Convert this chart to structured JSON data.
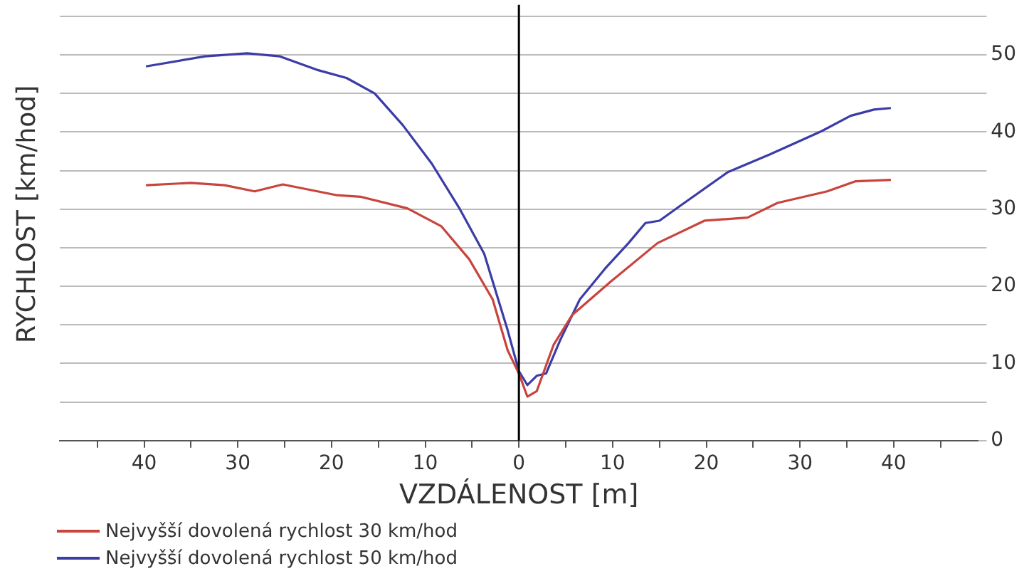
{
  "chart_data": {
    "type": "line",
    "xlabel": "VZDÁLENOST [m]",
    "ylabel": "RYCHLOST [km/hod]",
    "xlim": [
      -49,
      49
    ],
    "xticks": [
      {
        "value": -45,
        "label": null
      },
      {
        "value": -40,
        "label": "40"
      },
      {
        "value": -35,
        "label": null
      },
      {
        "value": -30,
        "label": "30"
      },
      {
        "value": -25,
        "label": null
      },
      {
        "value": -20,
        "label": "20"
      },
      {
        "value": -15,
        "label": null
      },
      {
        "value": -10,
        "label": "10"
      },
      {
        "value": -5,
        "label": null
      },
      0,
      {
        "value": 5,
        "label": null
      },
      10,
      {
        "value": 15,
        "label": null
      },
      20,
      {
        "value": 25,
        "label": null
      },
      30,
      {
        "value": 35,
        "label": null
      },
      40,
      {
        "value": 45,
        "label": null
      }
    ],
    "ylim": [
      0,
      55
    ],
    "yticks": [
      0,
      {
        "value": 5,
        "label": null
      },
      10,
      {
        "value": 15,
        "label": null
      },
      20,
      {
        "value": 25,
        "label": null
      },
      30,
      {
        "value": 35,
        "label": null
      },
      40,
      {
        "value": 45,
        "label": null
      },
      50,
      {
        "value": 55,
        "label": null
      }
    ],
    "grid": "y",
    "legend": "bottom left",
    "marker": "none",
    "line_style": "solid",
    "ref_lines": [
      {
        "axis": "x",
        "value": 0,
        "color": "#000000"
      }
    ],
    "series": [
      {
        "name": "Nejvyšší dovolená rychlost 30 km/hod",
        "color": "#c8443c",
        "x": [
          -39.8,
          -35,
          -31.4,
          -28.2,
          -25.2,
          -19.4,
          -16.9,
          -11.9,
          -8.3,
          -5.3,
          -2.8,
          -1.2,
          0,
          0.9,
          1.9,
          3.7,
          5.7,
          9.8,
          14.8,
          19.8,
          24.4,
          27.6,
          32.9,
          35.9,
          39.7
        ],
        "values": [
          33.1,
          33.4,
          33.1,
          32.3,
          33.2,
          31.8,
          31.6,
          30.1,
          27.8,
          23.5,
          18.3,
          11.7,
          8.7,
          5.7,
          6.4,
          12.4,
          16.3,
          20.6,
          25.6,
          28.5,
          28.9,
          30.8,
          32.3,
          33.6,
          33.8
        ]
      },
      {
        "name": "Nejvyšší dovolená rychlost 50 km/hod",
        "color": "#3c3ca8",
        "x": [
          -39.8,
          -33.5,
          -29,
          -25.5,
          -21.4,
          -18.4,
          -15.4,
          -12.4,
          -9.3,
          -6.3,
          -3.7,
          -1.2,
          0,
          0.9,
          1.9,
          2.9,
          4.4,
          6.5,
          9.2,
          11.7,
          13.5,
          15,
          17.3,
          22.3,
          26.8,
          32.3,
          35.4,
          37.9,
          39.7
        ],
        "values": [
          48.5,
          49.8,
          50.2,
          49.8,
          48,
          47,
          45,
          40.9,
          35.9,
          30,
          24.2,
          14.3,
          9,
          7.2,
          8.4,
          8.7,
          13,
          18.3,
          22.3,
          25.6,
          28.2,
          28.5,
          30.5,
          34.8,
          37.1,
          40.1,
          42.1,
          42.9,
          43.1
        ]
      }
    ]
  }
}
